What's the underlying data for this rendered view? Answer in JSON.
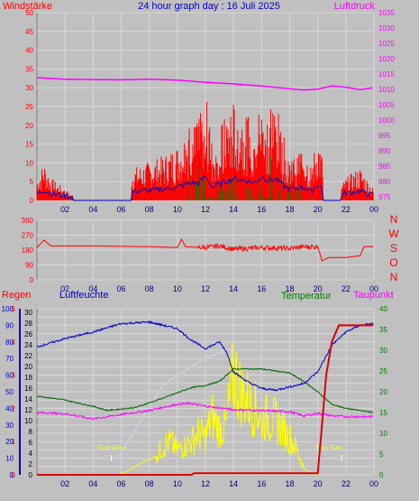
{
  "colors": {
    "background": "#c0c0c0",
    "plot": "#c0c0c0",
    "grid": "#d8d8d8",
    "wind": "#ff0000",
    "gust": "#0000c0",
    "green": "#008000",
    "pressure": "#ff00ff",
    "humidity": "#0000c8",
    "temperature": "#006400",
    "dewpoint": "#ff00ff",
    "rain": "#dd0000",
    "sun": "#ffff00",
    "solar_ghost": "#d0d0e0"
  },
  "header": {
    "left": "Windstärke",
    "center": "24 hour graph day : 16 Juli 2025",
    "right": "Luftdruck"
  },
  "panel1": {
    "left_ticks": [
      "0",
      "5",
      "10",
      "15",
      "20",
      "25",
      "30",
      "35",
      "40",
      "45",
      "50"
    ],
    "right_ticks": [
      "975",
      "980",
      "985",
      "990",
      "995",
      "1000",
      "1005",
      "1010",
      "1015",
      "1020",
      "1025",
      "1030",
      "1035"
    ]
  },
  "panel2": {
    "left_ticks": [
      "0",
      "90",
      "180",
      "270",
      "360"
    ],
    "compass": [
      "N",
      "W",
      "S",
      "O",
      "N"
    ]
  },
  "panel3": {
    "labels": {
      "rain": "Regen",
      "humidity": "Luftfeuchte",
      "temperature": "Temperatur",
      "dewpoint": "Taupunkt",
      "sunrise": "Sun Rise",
      "sunset": "Sun Set"
    },
    "rain_ticks": [
      "0",
      "1",
      "2",
      "3",
      "4",
      "5"
    ],
    "humidity_ticks": [
      "0",
      "10",
      "20",
      "30",
      "40",
      "50",
      "60",
      "70",
      "80",
      "90",
      "100"
    ],
    "temp_ticks": [
      "0",
      "2",
      "4",
      "6",
      "8",
      "10",
      "12",
      "14",
      "16",
      "18",
      "20",
      "22",
      "24",
      "26",
      "28",
      "30"
    ],
    "right_ticks": [
      "0",
      "5",
      "10",
      "15",
      "20",
      "25",
      "30",
      "35",
      "40"
    ]
  },
  "x_ticks": [
    "02",
    "04",
    "06",
    "08",
    "10",
    "12",
    "14",
    "16",
    "18",
    "20",
    "22",
    "00"
  ],
  "chart_data": [
    {
      "type": "bar",
      "title": "Windstärke",
      "ylim": [
        0,
        50
      ],
      "x_unit": "hour",
      "series": [
        {
          "name": "Windstärke",
          "values_at_hours": [
            [
              0,
              4
            ],
            [
              0.5,
              7
            ],
            [
              1,
              4
            ],
            [
              3,
              0
            ],
            [
              7,
              6
            ],
            [
              8,
              7
            ],
            [
              9,
              8
            ],
            [
              10,
              10
            ],
            [
              11,
              14
            ],
            [
              11.5,
              14
            ],
            [
              12,
              20
            ],
            [
              12.5,
              10
            ],
            [
              13,
              13
            ],
            [
              14,
              18
            ],
            [
              15,
              16
            ],
            [
              15.5,
              14
            ],
            [
              16,
              20
            ],
            [
              16.5,
              16
            ],
            [
              17,
              18
            ],
            [
              17.5,
              12
            ],
            [
              18,
              8
            ],
            [
              19,
              10
            ],
            [
              19.5,
              6
            ],
            [
              20,
              12
            ],
            [
              21,
              0
            ],
            [
              22,
              4
            ],
            [
              23,
              6
            ],
            [
              24,
              2
            ]
          ]
        }
      ]
    },
    {
      "type": "line",
      "title": "Luftdruck",
      "ylim": [
        975,
        1035
      ],
      "x_unit": "hour",
      "series": [
        {
          "name": "Luftdruck",
          "points": [
            [
              0,
              1013.8
            ],
            [
              2,
              1013.3
            ],
            [
              4,
              1013.2
            ],
            [
              6,
              1013.1
            ],
            [
              8,
              1013.3
            ],
            [
              10,
              1013.0
            ],
            [
              12,
              1012.3
            ],
            [
              14,
              1011.8
            ],
            [
              16,
              1011.1
            ],
            [
              18,
              1010.2
            ],
            [
              19,
              1009.8
            ],
            [
              20,
              1010.1
            ],
            [
              21,
              1011.1
            ],
            [
              22,
              1010.7
            ],
            [
              23,
              1009.9
            ],
            [
              24,
              1010.6
            ]
          ]
        }
      ]
    },
    {
      "type": "line",
      "title": "Wind direction",
      "ylim": [
        0,
        360
      ],
      "x_unit": "hour",
      "series": [
        {
          "name": "direction",
          "points": [
            [
              0,
              195
            ],
            [
              0.5,
              240
            ],
            [
              1,
              205
            ],
            [
              4,
              205
            ],
            [
              8,
              200
            ],
            [
              10,
              195
            ],
            [
              10.3,
              245
            ],
            [
              10.6,
              200
            ],
            [
              12,
              195
            ],
            [
              13,
              205
            ],
            [
              14,
              185
            ],
            [
              16,
              195
            ],
            [
              18,
              190
            ],
            [
              19,
              200
            ],
            [
              20,
              200
            ],
            [
              20.3,
              115
            ],
            [
              20.8,
              135
            ],
            [
              22,
              135
            ],
            [
              23,
              145
            ],
            [
              23.3,
              200
            ],
            [
              24,
              200
            ]
          ]
        }
      ]
    },
    {
      "type": "line",
      "title": "Luftfeuchte / Temperatur / Taupunkt / Regen",
      "x_unit": "hour",
      "series": [
        {
          "name": "Luftfeuchte",
          "ylim": [
            0,
            100
          ],
          "points": [
            [
              0,
              77
            ],
            [
              2,
              82
            ],
            [
              4,
              86
            ],
            [
              6,
              91
            ],
            [
              8,
              92
            ],
            [
              10,
              88
            ],
            [
              11,
              81
            ],
            [
              12,
              76
            ],
            [
              13,
              80
            ],
            [
              13.5,
              74
            ],
            [
              14,
              62
            ],
            [
              15,
              56
            ],
            [
              16,
              52
            ],
            [
              17,
              51
            ],
            [
              18,
              53
            ],
            [
              19,
              55
            ],
            [
              20,
              62
            ],
            [
              21,
              78
            ],
            [
              22,
              86
            ],
            [
              23,
              90
            ],
            [
              24,
              91
            ]
          ]
        },
        {
          "name": "Temperatur",
          "ylim": [
            0,
            40
          ],
          "points": [
            [
              0,
              19
            ],
            [
              2,
              18
            ],
            [
              4,
              16.5
            ],
            [
              5,
              15.5
            ],
            [
              7,
              16.2
            ],
            [
              9,
              18.5
            ],
            [
              11,
              21
            ],
            [
              12,
              21.5
            ],
            [
              13,
              22.5
            ],
            [
              14,
              25.5
            ],
            [
              16,
              25.5
            ],
            [
              18,
              24.5
            ],
            [
              19,
              22.5
            ],
            [
              20,
              20
            ],
            [
              21,
              17
            ],
            [
              22,
              16
            ],
            [
              24,
              15
            ]
          ]
        },
        {
          "name": "Taupunkt",
          "ylim": [
            0,
            40
          ],
          "points": [
            [
              0,
              15
            ],
            [
              2,
              14.7
            ],
            [
              4,
              13.5
            ],
            [
              6,
              14.5
            ],
            [
              8,
              15.5
            ],
            [
              10,
              17
            ],
            [
              11,
              17.2
            ],
            [
              12,
              16.5
            ],
            [
              14,
              15.7
            ],
            [
              16,
              15.5
            ],
            [
              18,
              15.2
            ],
            [
              19,
              14.2
            ],
            [
              20,
              14.8
            ],
            [
              21,
              14.2
            ],
            [
              22,
              14.0
            ],
            [
              24,
              14.0
            ]
          ]
        },
        {
          "name": "Regen",
          "ylim": [
            0,
            5
          ],
          "points": [
            [
              0,
              0
            ],
            [
              11,
              0
            ],
            [
              11.2,
              0.05
            ],
            [
              20,
              0.05
            ],
            [
              20.3,
              1.5
            ],
            [
              20.6,
              3
            ],
            [
              21,
              4
            ],
            [
              21.5,
              4.5
            ],
            [
              24,
              4.5
            ]
          ]
        },
        {
          "name": "Sonne",
          "ylim": [
            0,
            40
          ],
          "points": [
            [
              5.8,
              0
            ],
            [
              6.5,
              1
            ],
            [
              7.5,
              3
            ],
            [
              8.5,
              4.5
            ],
            [
              9,
              7
            ],
            [
              9.5,
              8
            ],
            [
              10,
              6
            ],
            [
              11,
              8
            ],
            [
              11.5,
              10
            ],
            [
              12,
              9
            ],
            [
              12.5,
              14
            ],
            [
              13,
              11
            ],
            [
              13.5,
              12
            ],
            [
              14,
              25
            ],
            [
              14.5,
              20
            ],
            [
              15,
              18
            ],
            [
              15.5,
              16
            ],
            [
              16,
              14
            ],
            [
              17,
              13
            ],
            [
              18,
              9
            ],
            [
              18.5,
              6
            ],
            [
              19,
              1.5
            ],
            [
              19.5,
              0.5
            ],
            [
              20,
              0
            ]
          ]
        }
      ]
    }
  ]
}
